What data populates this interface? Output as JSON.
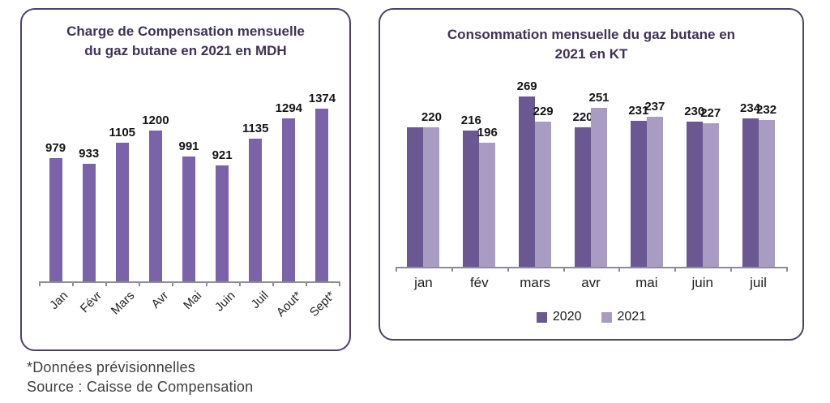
{
  "colors": {
    "panel_border": "#4e4167",
    "title_text": "#3f3355",
    "axis_line": "#8f8c99",
    "value_label": "#141414",
    "bar_single": "#7a63a9",
    "bar_2020": "#6b5792",
    "bar_2021": "#a99cc3"
  },
  "chart_data": [
    {
      "type": "bar",
      "title": "Charge de Compensation mensuelle du gaz butane en 2021 en MDH",
      "title_lines": [
        "Charge de Compensation mensuelle",
        "du gaz butane en 2021 en MDH"
      ],
      "categories": [
        "Jan",
        "Févr",
        "Mars",
        "Avr",
        "Mai",
        "Juin",
        "Juil",
        "Aout*",
        "Sept*"
      ],
      "values": [
        979,
        933,
        1105,
        1200,
        991,
        921,
        1135,
        1294,
        1374
      ],
      "data_labels": [
        "979",
        "933",
        "1105",
        "1200",
        "991",
        "921",
        "1135",
        "1294",
        "1374"
      ],
      "bar_color": "#7a63a9",
      "xlabel": "",
      "ylabel": "",
      "ylim": [
        0,
        1450
      ],
      "grid": false,
      "legend": false,
      "x_labels_rotated": true
    },
    {
      "type": "bar",
      "title": "Consommation mensuelle du gaz butane en 2021 en KT",
      "title_lines": [
        "Consommation mensuelle du gaz butane en",
        "2021 en KT"
      ],
      "categories": [
        "jan",
        "fév",
        "mars",
        "avr",
        "mai",
        "juin",
        "juil"
      ],
      "series": [
        {
          "name": "2020",
          "color": "#6b5792",
          "values": [
            220,
            216,
            269,
            220,
            231,
            230,
            234
          ],
          "visible_labels": [
            "",
            "216",
            "269",
            "220",
            "231",
            "230",
            "234"
          ]
        },
        {
          "name": "2021",
          "color": "#a99cc3",
          "values": [
            220,
            196,
            229,
            251,
            237,
            227,
            232
          ],
          "visible_labels": [
            "220",
            "196",
            "229",
            "251",
            "237",
            "227",
            "232"
          ]
        }
      ],
      "xlabel": "",
      "ylabel": "",
      "ylim": [
        0,
        290
      ],
      "grid": false,
      "legend_position": "bottom"
    }
  ],
  "footnotes": {
    "line1": "*Données prévisionnelles",
    "line2": "Source : Caisse de Compensation"
  }
}
